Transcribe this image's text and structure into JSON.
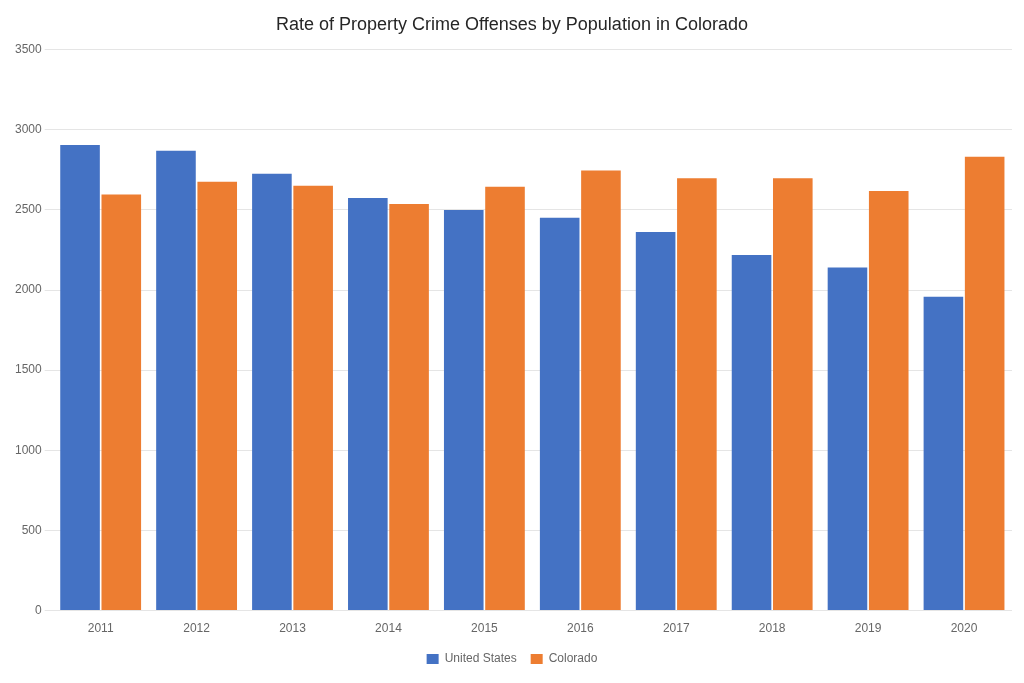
{
  "chart_data": {
    "type": "bar",
    "title": "Rate of Property Crime Offenses by Population in Colorado",
    "categories": [
      "2011",
      "2012",
      "2013",
      "2014",
      "2015",
      "2016",
      "2017",
      "2018",
      "2019",
      "2020"
    ],
    "series": [
      {
        "name": "United States",
        "color": "#4472C4",
        "values": [
          2905,
          2869,
          2726,
          2574,
          2500,
          2451,
          2362,
          2219,
          2140,
          1958
        ]
      },
      {
        "name": "Colorado",
        "color": "#ED7D31",
        "values": [
          2596,
          2675,
          2651,
          2537,
          2644,
          2746,
          2697,
          2697,
          2618,
          2832
        ]
      }
    ],
    "ylim": [
      0,
      3500
    ],
    "yticks": [
      0,
      500,
      1000,
      1500,
      2000,
      2500,
      3000,
      3500
    ],
    "grid": true,
    "legend": "bottom"
  }
}
